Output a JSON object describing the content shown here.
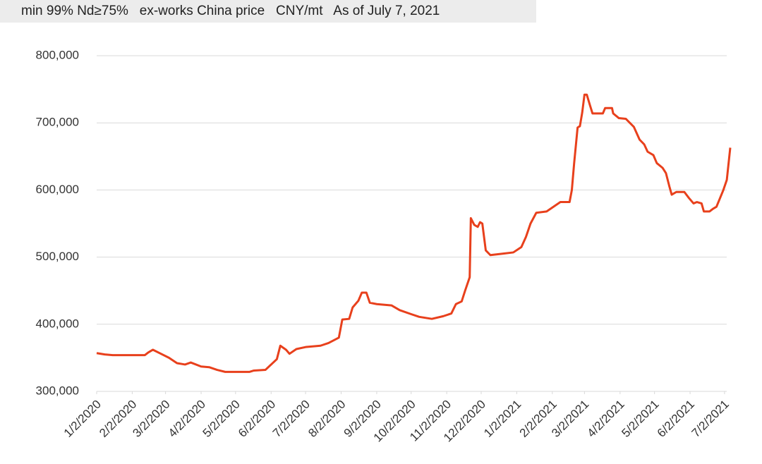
{
  "chart_data": {
    "type": "line",
    "title": "min 99% Nd≥75%   ex-works China price   CNY/mt   As of July 7, 2021",
    "x": [
      "1/2/2020",
      "1/9/2020",
      "1/16/2020",
      "2/13/2020",
      "2/16/2020",
      "2/20/2020",
      "2/27/2020",
      "3/5/2020",
      "3/12/2020",
      "3/19/2020",
      "3/24/2020",
      "4/2/2020",
      "4/9/2020",
      "4/16/2020",
      "4/23/2020",
      "5/14/2020",
      "5/18/2020",
      "5/28/2020",
      "6/2/2020",
      "6/7/2020",
      "6/10/2020",
      "6/15/2020",
      "6/18/2020",
      "6/24/2020",
      "7/2/2020",
      "7/15/2020",
      "7/22/2020",
      "7/31/2020",
      "8/3/2020",
      "8/9/2020",
      "8/12/2020",
      "8/17/2020",
      "8/20/2020",
      "8/24/2020",
      "8/27/2020",
      "9/2/2020",
      "9/15/2020",
      "9/22/2020",
      "10/2/2020",
      "10/9/2020",
      "10/20/2020",
      "10/30/2020",
      "11/6/2020",
      "11/10/2020",
      "11/15/2020",
      "11/18/2020",
      "11/22/2020",
      "11/23/2020",
      "11/26/2020",
      "11/29/2020",
      "12/1/2020",
      "12/3/2020",
      "12/6/2020",
      "12/10/2020",
      "12/20/2020",
      "12/30/2020",
      "1/6/2021",
      "1/10/2021",
      "1/14/2021",
      "1/19/2021",
      "1/28/2021",
      "2/9/2021",
      "2/17/2021",
      "2/19/2021",
      "2/21/2021",
      "2/24/2021",
      "2/26/2021",
      "2/28/2021",
      "3/2/2021",
      "3/4/2021",
      "3/7/2021",
      "3/9/2021",
      "3/18/2021",
      "3/20/2021",
      "3/26/2021",
      "3/27/2021",
      "4/1/2021",
      "4/7/2021",
      "4/14/2021",
      "4/19/2021",
      "4/23/2021",
      "4/26/2021",
      "5/1/2021",
      "5/4/2021",
      "5/9/2021",
      "5/12/2021",
      "5/15/2021",
      "5/17/2021",
      "5/21/2021",
      "5/28/2021",
      "6/1/2021",
      "6/5/2021",
      "6/8/2021",
      "6/12/2021",
      "6/14/2021",
      "6/19/2021",
      "6/22/2021",
      "6/25/2021",
      "7/1/2021",
      "7/4/2021",
      "7/7/2021"
    ],
    "series": [
      {
        "color": "#e8401c",
        "values": [
          357000,
          355000,
          354000,
          354000,
          358000,
          362000,
          356000,
          350000,
          342000,
          340000,
          343000,
          337000,
          336000,
          332000,
          329000,
          329000,
          331000,
          332000,
          340000,
          348000,
          368000,
          362000,
          356000,
          363000,
          366000,
          368000,
          372000,
          380000,
          407000,
          408000,
          425000,
          435000,
          447000,
          447000,
          432000,
          430000,
          428000,
          421000,
          415000,
          411000,
          408000,
          412000,
          416000,
          430000,
          434000,
          450000,
          470000,
          558000,
          548000,
          545000,
          552000,
          550000,
          510000,
          503000,
          505000,
          507000,
          515000,
          530000,
          550000,
          566000,
          568000,
          582000,
          582000,
          600000,
          640000,
          693000,
          695000,
          715000,
          742000,
          742000,
          725000,
          714000,
          714000,
          722000,
          722000,
          714000,
          707000,
          706000,
          694000,
          675000,
          668000,
          657000,
          652000,
          640000,
          633000,
          625000,
          605000,
          593000,
          597000,
          597000,
          588000,
          580000,
          582000,
          580000,
          568000,
          568000,
          572000,
          575000,
          600000,
          615000,
          663000
        ]
      }
    ],
    "xlim": [
      "1/2/2020",
      "7/7/2021"
    ],
    "xticks": [
      "1/2/2020",
      "2/2/2020",
      "3/2/2020",
      "4/2/2020",
      "5/2/2020",
      "6/2/2020",
      "7/2/2020",
      "8/2/2020",
      "9/2/2020",
      "10/2/2020",
      "11/2/2020",
      "12/2/2020",
      "1/2/2021",
      "2/2/2021",
      "3/2/2021",
      "4/2/2021",
      "5/2/2021",
      "6/2/2021",
      "7/2/2021"
    ],
    "ylim": [
      300000,
      800000
    ],
    "yticks": [
      {
        "value": 300000,
        "label": "300,000"
      },
      {
        "value": 400000,
        "label": "400,000"
      },
      {
        "value": 500000,
        "label": "500,000"
      },
      {
        "value": 600000,
        "label": "600,000"
      },
      {
        "value": 700000,
        "label": "700,000"
      },
      {
        "value": 800000,
        "label": "800,000"
      }
    ],
    "grid": true
  }
}
